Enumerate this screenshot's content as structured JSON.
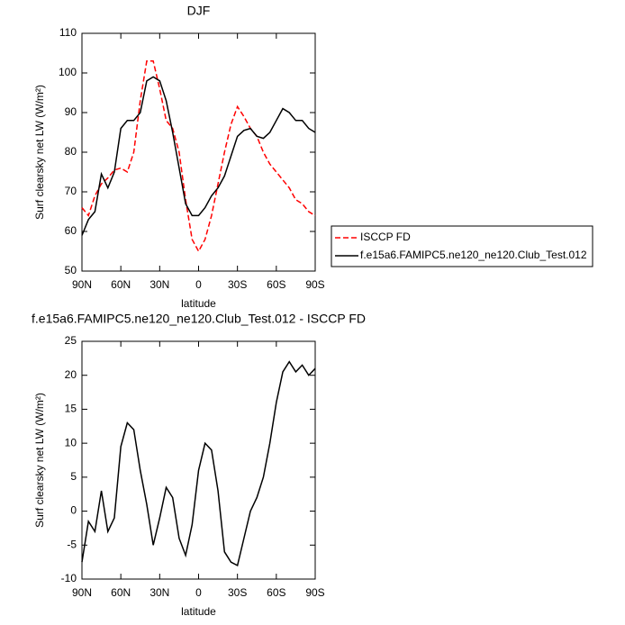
{
  "chart_data": [
    {
      "type": "line",
      "title": "DJF",
      "x_label": "latitude",
      "y_label": "Surf clearsky net LW (W/m²)",
      "x": [
        90,
        85,
        80,
        75,
        70,
        65,
        60,
        55,
        50,
        45,
        40,
        35,
        30,
        25,
        20,
        15,
        10,
        5,
        0,
        -5,
        -10,
        -15,
        -20,
        -25,
        -30,
        -35,
        -40,
        -45,
        -50,
        -55,
        -60,
        -65,
        -70,
        -75,
        -80,
        -85,
        -90
      ],
      "series": [
        {
          "name": "ISCCP FD",
          "color": "#ff0000",
          "dash": true,
          "values": [
            66,
            64,
            69,
            72,
            73.5,
            75.5,
            76,
            75,
            80,
            93,
            103,
            103,
            96,
            88,
            86,
            80,
            68,
            58,
            55,
            58,
            64,
            72,
            80,
            87,
            91.5,
            89,
            86,
            84,
            80,
            77,
            75,
            73,
            71,
            68,
            67,
            65,
            64
          ]
        },
        {
          "name": "f.e15a6.FAMIPC5.ne120_ne120.Club_Test.012",
          "color": "#000000",
          "dash": false,
          "values": [
            59,
            63,
            65,
            74.5,
            71,
            75,
            86,
            88,
            88,
            90,
            98,
            99,
            98,
            93,
            85,
            76,
            67,
            64,
            64,
            66,
            69,
            71,
            74,
            79,
            84,
            85.5,
            86,
            84,
            83.5,
            85,
            88,
            91,
            90,
            88,
            88,
            86,
            85
          ]
        }
      ],
      "xlim": [
        90,
        -90
      ],
      "ylim": [
        50,
        110
      ],
      "xticks": [
        {
          "value": 90,
          "label": "90N"
        },
        {
          "value": 60,
          "label": "60N"
        },
        {
          "value": 30,
          "label": "30N"
        },
        0,
        {
          "value": -30,
          "label": "30S"
        },
        {
          "value": -60,
          "label": "60S"
        },
        {
          "value": -90,
          "label": "90S"
        }
      ],
      "yticks": [
        50,
        60,
        70,
        80,
        90,
        100,
        110
      ],
      "legend": true
    },
    {
      "type": "line",
      "title": "f.e15a6.FAMIPC5.ne120_ne120.Club_Test.012 - ISCCP FD",
      "x_label": "latitude",
      "y_label": "Surf clearsky net LW (W/m²)",
      "x": [
        90,
        85,
        80,
        75,
        70,
        65,
        60,
        55,
        50,
        45,
        40,
        35,
        30,
        25,
        20,
        15,
        10,
        5,
        0,
        -5,
        -10,
        -15,
        -20,
        -25,
        -30,
        -35,
        -40,
        -45,
        -50,
        -55,
        -60,
        -65,
        -70,
        -75,
        -80,
        -85,
        -90
      ],
      "series": [
        {
          "color": "#000000",
          "dash": false,
          "values": [
            -7.5,
            -1.5,
            -3,
            3,
            -3,
            -1,
            9.5,
            13,
            12,
            6,
            1,
            -5,
            -1,
            3.5,
            2,
            -4,
            -6.5,
            -2,
            6,
            10,
            9,
            3,
            -6,
            -7.5,
            -8,
            -4,
            0,
            2,
            5,
            10,
            16,
            20.5,
            22,
            20.5,
            21.5,
            20,
            21
          ]
        }
      ],
      "xlim": [
        90,
        -90
      ],
      "ylim": [
        -10,
        25
      ],
      "xticks": [
        {
          "value": 90,
          "label": "90N"
        },
        {
          "value": 60,
          "label": "60N"
        },
        {
          "value": 30,
          "label": "30N"
        },
        0,
        {
          "value": -30,
          "label": "30S"
        },
        {
          "value": -60,
          "label": "60S"
        },
        {
          "value": -90,
          "label": "90S"
        }
      ],
      "yticks": [
        -10,
        -5,
        0,
        5,
        10,
        15,
        20,
        25
      ],
      "legend": false
    }
  ]
}
